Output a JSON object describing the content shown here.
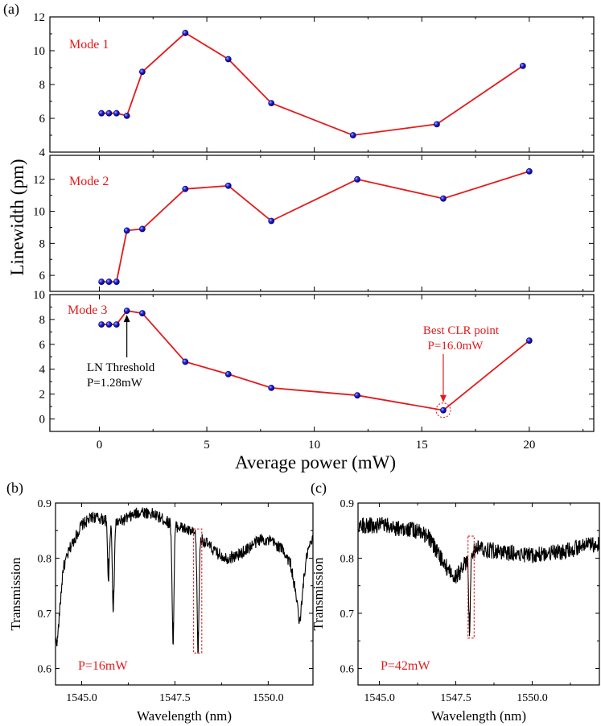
{
  "figure_label": "(a)",
  "chart_data": [
    {
      "id": "a",
      "type": "line",
      "xlabel": "Average power (mW)",
      "ylabel": "Linewidth (pm)",
      "xlim": [
        -2.3,
        23
      ],
      "x_ticks": [
        "0",
        "5",
        "10",
        "15",
        "20"
      ],
      "panels": [
        {
          "name": "Mode 1",
          "ylim": [
            4,
            12
          ],
          "y_ticks": [
            "4",
            "6",
            "8",
            "10",
            "12"
          ],
          "x": [
            0.1,
            0.45,
            0.8,
            1.28,
            2.0,
            4.0,
            6.0,
            8.0,
            11.8,
            15.7,
            19.7
          ],
          "y": [
            6.3,
            6.3,
            6.3,
            6.15,
            8.75,
            11.05,
            9.5,
            6.9,
            5.0,
            5.65,
            9.1
          ],
          "line_color": "#e31a1c",
          "marker_color": "#1a1ad0"
        },
        {
          "name": "Mode 2",
          "ylim": [
            5,
            13.5
          ],
          "y_ticks": [
            "6",
            "8",
            "10",
            "12"
          ],
          "x": [
            0.1,
            0.45,
            0.8,
            1.28,
            2.0,
            4.0,
            6.0,
            8.0,
            12.0,
            16.0,
            20.0
          ],
          "y": [
            5.6,
            5.6,
            5.6,
            8.8,
            8.9,
            11.4,
            11.6,
            9.4,
            12.0,
            10.8,
            12.5
          ],
          "line_color": "#e31a1c",
          "marker_color": "#1a1ad0"
        },
        {
          "name": "Mode 3",
          "ylim": [
            -1,
            10
          ],
          "y_ticks": [
            "0",
            "2",
            "4",
            "6",
            "8",
            "10"
          ],
          "x": [
            0.1,
            0.45,
            0.8,
            1.28,
            2.0,
            4.0,
            6.0,
            8.0,
            12.0,
            16.0,
            20.0
          ],
          "y": [
            7.6,
            7.6,
            7.6,
            8.7,
            8.5,
            4.6,
            3.6,
            2.5,
            1.9,
            0.7,
            6.3
          ],
          "line_color": "#e31a1c",
          "marker_color": "#1a1ad0",
          "annotations": [
            {
              "text_lines": [
                "LN Threshold",
                "P=1.28mW"
              ],
              "x": 1.28,
              "y": 8.7,
              "color": "#000000"
            },
            {
              "text_lines": [
                "Best CLR point",
                "P=16.0mW"
              ],
              "x": 16.0,
              "y": 0.7,
              "color": "#e31a1c"
            }
          ]
        }
      ]
    },
    {
      "id": "b",
      "label": "(b)",
      "type": "line",
      "xlabel": "Wavelength (nm)",
      "ylabel": "Transmission",
      "xlim": [
        1544.3,
        1551.2
      ],
      "ylim": [
        0.57,
        0.9
      ],
      "x_ticks": [
        "1545.0",
        "1547.5",
        "1550.0"
      ],
      "y_ticks": [
        "0.6",
        "0.7",
        "0.8",
        "0.9"
      ],
      "power_label": "P=16mW",
      "spectrum_keypoints": {
        "x": [
          1544.35,
          1544.5,
          1544.7,
          1545.0,
          1545.3,
          1545.6,
          1545.8,
          1546.0,
          1546.3,
          1546.6,
          1546.9,
          1547.2,
          1547.45,
          1547.7,
          1548.0,
          1548.3,
          1548.6,
          1548.9,
          1549.2,
          1549.5,
          1549.8,
          1550.1,
          1550.4,
          1550.6,
          1550.75,
          1550.85,
          1550.95,
          1551.05,
          1551.2
        ],
        "y": [
          0.65,
          0.78,
          0.82,
          0.86,
          0.875,
          0.87,
          0.865,
          0.865,
          0.875,
          0.885,
          0.88,
          0.87,
          0.86,
          0.855,
          0.845,
          0.83,
          0.81,
          0.8,
          0.805,
          0.82,
          0.835,
          0.83,
          0.815,
          0.79,
          0.73,
          0.68,
          0.76,
          0.81,
          0.835
        ]
      },
      "dips": [
        {
          "x": 1545.72,
          "y": 0.763
        },
        {
          "x": 1545.85,
          "y": 0.705
        },
        {
          "x": 1547.45,
          "y": 0.647
        },
        {
          "x": 1548.12,
          "y": 0.63
        }
      ],
      "highlight": {
        "x": [
          1548.0,
          1548.22
        ],
        "y": [
          0.628,
          0.853
        ],
        "color": "#e31a1c"
      }
    },
    {
      "id": "c",
      "label": "(c)",
      "type": "line",
      "xlabel": "Wavelength (nm)",
      "ylabel": "Transmission",
      "xlim": [
        1544.3,
        1552.2
      ],
      "ylim": [
        0.57,
        0.9
      ],
      "x_ticks": [
        "1545.0",
        "1547.5",
        "1550.0"
      ],
      "y_ticks": [
        "0.6",
        "0.7",
        "0.8",
        "0.9"
      ],
      "power_label": "P=42mW",
      "spectrum_keypoints": {
        "x": [
          1544.35,
          1545.0,
          1545.6,
          1546.2,
          1546.6,
          1547.0,
          1547.3,
          1547.5,
          1547.7,
          1547.9,
          1548.2,
          1548.6,
          1549.0,
          1549.5,
          1550.0,
          1550.5,
          1551.0,
          1551.5,
          1552.0,
          1552.2
        ],
        "y": [
          0.86,
          0.86,
          0.855,
          0.85,
          0.84,
          0.8,
          0.775,
          0.765,
          0.78,
          0.8,
          0.82,
          0.815,
          0.81,
          0.81,
          0.805,
          0.81,
          0.81,
          0.82,
          0.825,
          0.825
        ]
      },
      "dips": [
        {
          "x": 1547.95,
          "y": 0.665
        }
      ],
      "highlight": {
        "x": [
          1547.9,
          1548.1
        ],
        "y": [
          0.655,
          0.84
        ],
        "color": "#e31a1c"
      }
    }
  ]
}
